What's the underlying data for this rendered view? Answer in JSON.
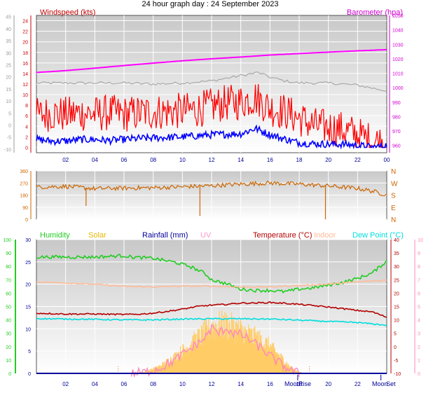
{
  "title": "24 hour graph day : 24 September 2023",
  "chart_data": [
    {
      "type": "line",
      "panel": "wind_baro",
      "label_left": "Windspeed (kts)",
      "label_right": "Barometer (hpa)",
      "x_ticks": [
        "02",
        "04",
        "06",
        "08",
        "10",
        "12",
        "14",
        "16",
        "18",
        "20",
        "22",
        "00"
      ],
      "y_left_ticks": [
        "0",
        "2",
        "4",
        "6",
        "8",
        "10",
        "12",
        "14",
        "16",
        "18",
        "20",
        "22",
        "24"
      ],
      "y_left_range": [
        -1,
        25
      ],
      "y_outer_ticks": [
        "-10",
        "-5",
        "0",
        "5",
        "10",
        "15",
        "20",
        "25",
        "30",
        "35",
        "40",
        "45"
      ],
      "y_outer_range": [
        -11.5,
        45.5
      ],
      "y_right_ticks": [
        "960",
        "970",
        "980",
        "990",
        "1000",
        "1010",
        "1020",
        "1030",
        "1040",
        "1050"
      ],
      "y_right_range": [
        955,
        1050
      ],
      "grid": true,
      "series": [
        {
          "name": "",
          "color": "#ff00ff",
          "axis": "right",
          "x": [
            0,
            2,
            4,
            6,
            8,
            10,
            12,
            14,
            16,
            18,
            20,
            22,
            24
          ],
          "values": [
            1010.5,
            1011.8,
            1013.5,
            1015.3,
            1017.0,
            1018.6,
            1020.0,
            1021.2,
            1022.6,
            1023.6,
            1024.6,
            1025.5,
            1026.3
          ]
        },
        {
          "name": "",
          "color": "#a8a8a8",
          "axis": "left",
          "x": [
            0,
            2,
            4,
            6,
            8,
            10,
            12,
            14,
            15.2,
            16,
            17,
            18,
            20,
            22,
            24
          ],
          "values": [
            12.2,
            12.2,
            12.2,
            12.2,
            12.0,
            12.2,
            12.6,
            13.6,
            14.2,
            13.3,
            12.6,
            12.2,
            12.2,
            11.8,
            10.7
          ]
        },
        {
          "name": "",
          "color": "#ff0000",
          "axis": "left",
          "x": [
            0,
            1,
            2,
            3,
            4,
            5,
            6,
            7,
            8,
            9,
            10,
            11,
            12,
            13,
            14,
            15,
            16,
            17,
            18,
            19,
            20,
            21,
            22,
            23,
            24
          ],
          "values": [
            6,
            6.5,
            6.2,
            6.5,
            6.3,
            6.6,
            6.3,
            6.5,
            6.7,
            6.8,
            6.9,
            7.2,
            7.8,
            8.4,
            8.6,
            9.5,
            7.4,
            6.8,
            5.5,
            4.2,
            3.8,
            3.4,
            2.4,
            1.2,
            0.8
          ],
          "spread": 3.5
        },
        {
          "name": "",
          "color": "#0000ff",
          "axis": "left",
          "x": [
            0,
            1,
            2,
            3,
            4,
            5,
            6,
            7,
            8,
            9,
            10,
            11,
            12,
            13,
            14,
            15,
            16,
            17,
            18,
            19,
            20,
            21,
            22,
            23,
            24
          ],
          "values": [
            1.5,
            1.2,
            1.2,
            1.5,
            1.5,
            1.3,
            1.5,
            1.7,
            1.8,
            1.9,
            2.0,
            2.2,
            2.4,
            2.5,
            2.6,
            3.6,
            2.4,
            1.6,
            0.9,
            0.7,
            0.6,
            0.6,
            0.4,
            0.0,
            0.4
          ],
          "spread": 0.7
        }
      ]
    },
    {
      "type": "line",
      "panel": "wind_direction",
      "y_ticks": [
        "0",
        "90",
        "180",
        "270",
        "360"
      ],
      "y_range": [
        0,
        360
      ],
      "compass_labels": [
        "N",
        "W",
        "S",
        "E",
        "N"
      ],
      "x_ticks": [],
      "grid": true,
      "series": [
        {
          "name": "",
          "color": "#cc6600",
          "x": [
            0,
            2,
            4,
            6,
            8,
            10,
            12,
            14,
            16,
            18,
            20,
            22,
            23,
            24
          ],
          "values": [
            240,
            245,
            228,
            232,
            235,
            242,
            250,
            262,
            270,
            262,
            248,
            230,
            210,
            182
          ],
          "spikes": [
            {
              "x": 3.4,
              "value": 100
            },
            {
              "x": 11.2,
              "value": 25
            },
            {
              "x": 19.8,
              "value": 0
            }
          ]
        }
      ]
    },
    {
      "type": "line",
      "panel": "temperature_humidity",
      "legend": [
        "Humidity",
        "Solar",
        "Rainfall (mm)",
        "UV",
        "Temperature (°C)",
        "Indoor",
        "Dew Point (°C)"
      ],
      "legend_colors": [
        "#22cc22",
        "#e6b800",
        "#000099",
        "#ff99cc",
        "#b30000",
        "#ffbb99",
        "#00dddd"
      ],
      "x_ticks": [
        "02",
        "04",
        "06",
        "08",
        "10",
        "12",
        "14",
        "16",
        "18",
        "20",
        "22"
      ],
      "y_humidity_ticks": [
        "0",
        "10",
        "20",
        "30",
        "40",
        "50",
        "60",
        "70",
        "80",
        "90",
        "100"
      ],
      "y_humidity_range": [
        0,
        100
      ],
      "y_solar_ticks": [
        "0",
        "5",
        "10",
        "15",
        "20",
        "25",
        "30"
      ],
      "y_solar_range": [
        0,
        30
      ],
      "y_temp_ticks": [
        "-10",
        "-5",
        "0",
        "5",
        "10",
        "15",
        "20",
        "25",
        "30",
        "35",
        "40"
      ],
      "y_temp_range": [
        -10,
        40
      ],
      "y_uv_ticks": [
        "0",
        "1",
        "2",
        "3",
        "4",
        "5",
        "6",
        "7",
        "8",
        "9",
        "10"
      ],
      "y_uv_range": [
        0,
        10
      ],
      "events": [
        "Moon",
        "Rise",
        "Moon",
        "Set"
      ],
      "grid": true,
      "series": [
        {
          "name": "Humidity",
          "color": "#22cc22",
          "axis": "humidity",
          "x": [
            0,
            2,
            4,
            6,
            6.5,
            8,
            9.5,
            10.5,
            11.5,
            12,
            13,
            14,
            15,
            16,
            17,
            18,
            19,
            20,
            21,
            22,
            23,
            24
          ],
          "values": [
            87,
            87,
            87,
            88,
            87,
            86,
            83,
            80,
            75,
            70,
            67,
            63,
            62,
            62,
            61,
            63,
            64,
            66,
            68,
            71,
            75,
            84
          ]
        },
        {
          "name": "Indoor",
          "color": "#ffbb99",
          "axis": "temperature",
          "x": [
            0,
            2,
            4,
            6,
            8,
            10,
            12,
            14,
            16,
            18,
            20,
            22,
            24
          ],
          "values": [
            24.2,
            23.8,
            23.3,
            22.5,
            22.3,
            22.6,
            22.6,
            22.3,
            22.3,
            22.8,
            23.4,
            24.2,
            24.8
          ]
        },
        {
          "name": "Temperature (°C)",
          "color": "#b30000",
          "axis": "temperature",
          "x": [
            0,
            2,
            4,
            6,
            7,
            8,
            9,
            10,
            11,
            12,
            13,
            14,
            15,
            16,
            17,
            18,
            19,
            20,
            21,
            22,
            23,
            24
          ],
          "values": [
            12.5,
            12.2,
            12.2,
            12.0,
            12.1,
            12.5,
            13.2,
            14.0,
            15.0,
            15.5,
            15.8,
            16.3,
            16.3,
            16.5,
            16.2,
            15.8,
            15.3,
            14.8,
            14.2,
            13.5,
            13.0,
            11.0
          ]
        },
        {
          "name": "Dew Point (°C)",
          "color": "#00dddd",
          "axis": "temperature",
          "x": [
            0,
            2,
            4,
            6,
            8,
            10,
            12,
            14,
            16,
            18,
            20,
            22,
            24
          ],
          "values": [
            10.5,
            10.3,
            10.2,
            10.0,
            10.0,
            10.3,
            10.4,
            10.4,
            10.3,
            9.9,
            9.4,
            9.0,
            8.0
          ]
        },
        {
          "name": "UV",
          "color": "#ff88bb",
          "axis": "uv",
          "x": [
            6.5,
            7.5,
            8.5,
            9.5,
            10.5,
            11.5,
            12,
            12.5,
            13,
            13.5,
            14,
            14.5,
            15,
            15.5,
            16,
            16.5,
            17,
            17.5,
            18
          ],
          "values": [
            0,
            0.1,
            0.4,
            1.0,
            1.8,
            2.6,
            3.4,
            3.0,
            3.4,
            3.0,
            2.9,
            2.6,
            2.2,
            1.8,
            1.3,
            0.9,
            0.5,
            0.2,
            0
          ]
        },
        {
          "name": "Solar",
          "color": "#ffcc66",
          "axis": "solar",
          "type": "area",
          "x": [
            6.5,
            7.5,
            8.5,
            9.5,
            10.5,
            11.5,
            12,
            12.5,
            13,
            13.5,
            14,
            14.5,
            15,
            15.5,
            16,
            16.5,
            17,
            17.5,
            18,
            18.4
          ],
          "values": [
            0,
            0.5,
            2.0,
            4.6,
            7.6,
            10.8,
            12.3,
            13.0,
            12.9,
            12.3,
            11.5,
            10.5,
            9.6,
            8.6,
            7.3,
            5.2,
            3.4,
            1.2,
            0.4,
            0
          ]
        },
        {
          "name": "Rainfall (mm)",
          "color": "#000099",
          "axis": "solar",
          "x": [
            0,
            24
          ],
          "values": [
            0,
            0
          ]
        }
      ]
    }
  ]
}
